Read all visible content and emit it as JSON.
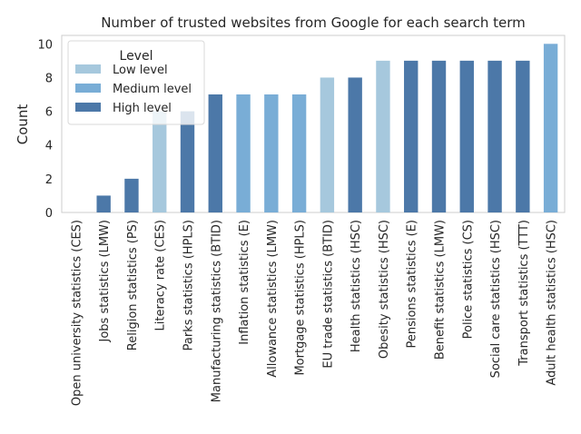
{
  "chart_data": {
    "type": "bar",
    "title": "Number of trusted websites from Google for each search term",
    "xlabel": "",
    "ylabel": "Count",
    "ylim": [
      0,
      10.5
    ],
    "yticks": [
      0,
      2,
      4,
      6,
      8,
      10
    ],
    "grid": false,
    "legend": {
      "title": "Level",
      "placement": "top-left",
      "entries": [
        {
          "label": "Low level",
          "color": "#a6c8dd"
        },
        {
          "label": "Medium level",
          "color": "#79add6"
        },
        {
          "label": "High level",
          "color": "#4c78a8"
        }
      ]
    },
    "categories": [
      "Open university statistics (CES)",
      "Jobs statistics (LMW)",
      "Religion statistics (PS)",
      "Literacy rate (CES)",
      "Parks statistics (HPLS)",
      "Manufacturing statistics (BTID)",
      "Inflation statistics (E)",
      "Allowance statistics (LMW)",
      "Mortgage statistics (HPLS)",
      "EU trade statistics (BTID)",
      "Health statistics (HSC)",
      "Obesity statistics (HSC)",
      "Pensions statistics (E)",
      "Benefit statistics (LMW)",
      "Police statistics (CS)",
      "Social care statistics (HSC)",
      "Transport statistics (TTT)",
      "Adult health statistics (HSC)"
    ],
    "values": [
      0,
      1,
      2,
      6,
      6,
      7,
      7,
      7,
      7,
      8,
      8,
      9,
      9,
      9,
      9,
      9,
      9,
      10
    ],
    "levels": [
      "High level",
      "High level",
      "High level",
      "Low level",
      "High level",
      "High level",
      "Medium level",
      "Medium level",
      "Medium level",
      "Low level",
      "High level",
      "Low level",
      "High level",
      "High level",
      "High level",
      "High level",
      "High level",
      "Medium level"
    ]
  }
}
